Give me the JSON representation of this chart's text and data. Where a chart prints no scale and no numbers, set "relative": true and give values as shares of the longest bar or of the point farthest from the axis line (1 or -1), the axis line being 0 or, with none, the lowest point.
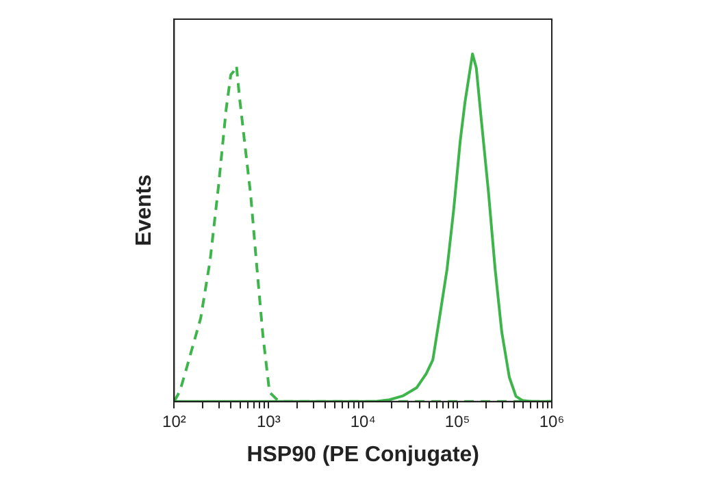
{
  "chart_data": {
    "type": "line",
    "xlabel": "HSP90 (PE Conjugate)",
    "ylabel": "Events",
    "relative": true,
    "log": "x",
    "legend": false,
    "grid": false,
    "marker": "none",
    "xlim": [
      100,
      1000000
    ],
    "xticks": [
      {
        "value": 100,
        "label": "10²"
      },
      {
        "value": 200,
        "label": null
      },
      {
        "value": 300,
        "label": null
      },
      {
        "value": 400,
        "label": null
      },
      {
        "value": 500,
        "label": null
      },
      {
        "value": 600,
        "label": null
      },
      {
        "value": 700,
        "label": null
      },
      {
        "value": 800,
        "label": null
      },
      {
        "value": 900,
        "label": null
      },
      {
        "value": 1000,
        "label": "10³"
      },
      {
        "value": 2000,
        "label": null
      },
      {
        "value": 3000,
        "label": null
      },
      {
        "value": 4000,
        "label": null
      },
      {
        "value": 5000,
        "label": null
      },
      {
        "value": 6000,
        "label": null
      },
      {
        "value": 7000,
        "label": null
      },
      {
        "value": 8000,
        "label": null
      },
      {
        "value": 9000,
        "label": null
      },
      {
        "value": 10000,
        "label": "10⁴"
      },
      {
        "value": 20000,
        "label": null
      },
      {
        "value": 30000,
        "label": null
      },
      {
        "value": 40000,
        "label": null
      },
      {
        "value": 50000,
        "label": null
      },
      {
        "value": 60000,
        "label": null
      },
      {
        "value": 70000,
        "label": null
      },
      {
        "value": 80000,
        "label": null
      },
      {
        "value": 90000,
        "label": null
      },
      {
        "value": 100000,
        "label": "10⁵"
      },
      {
        "value": 200000,
        "label": null
      },
      {
        "value": 300000,
        "label": null
      },
      {
        "value": 400000,
        "label": null
      },
      {
        "value": 500000,
        "label": null
      },
      {
        "value": 600000,
        "label": null
      },
      {
        "value": 700000,
        "label": null
      },
      {
        "value": 800000,
        "label": null
      },
      {
        "value": 900000,
        "label": null
      },
      {
        "value": 1000000,
        "label": "10⁶"
      }
    ],
    "series": [
      {
        "color": "#3db54a",
        "line_style": "dashed",
        "x": [
          100,
          115,
          135,
          191,
          240,
          295,
          355,
          398,
          427,
          457,
          490,
          550,
          646,
          741,
          871,
          1023,
          1288,
          10000,
          100000,
          1000000
        ],
        "values": [
          0,
          0.03,
          0.095,
          0.24,
          0.405,
          0.62,
          0.84,
          0.94,
          0.95,
          0.966,
          0.88,
          0.76,
          0.595,
          0.405,
          0.19,
          0.027,
          0,
          0,
          0,
          0
        ]
      },
      {
        "color": "#3db54a",
        "line_style": "solid",
        "x": [
          100,
          13490,
          19050,
          26300,
          37150,
          46770,
          54950,
          64570,
          77620,
          91200,
          107200,
          120200,
          131800,
          144500,
          158500,
          177800,
          213800,
          251200,
          295100,
          354800,
          416900,
          489800,
          616600,
          1000000
        ],
        "values": [
          0,
          0,
          0.005,
          0.016,
          0.04,
          0.08,
          0.12,
          0.24,
          0.38,
          0.55,
          0.75,
          0.86,
          0.93,
          1,
          0.96,
          0.82,
          0.6,
          0.38,
          0.2,
          0.07,
          0.015,
          0.003,
          0,
          0
        ]
      }
    ]
  }
}
